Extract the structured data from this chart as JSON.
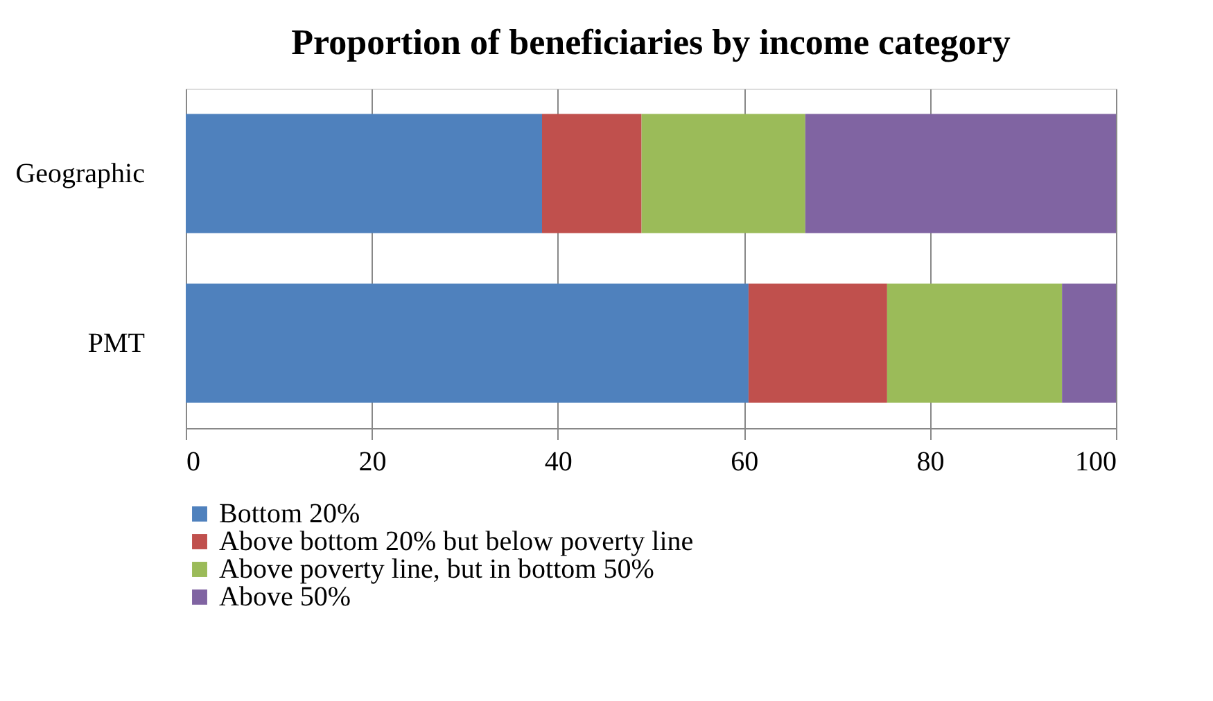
{
  "chart_data": {
    "type": "bar",
    "orientation": "horizontal",
    "stacked": true,
    "title": "Proportion of beneficiaries by income category",
    "categories": [
      "Geographic",
      "PMT"
    ],
    "series": [
      {
        "name": "Bottom 20%",
        "color": "#4f81bd",
        "values": [
          38.3,
          60.5
        ]
      },
      {
        "name": "Above bottom 20% but below poverty line",
        "color": "#c0504d",
        "values": [
          10.7,
          14.9
        ]
      },
      {
        "name": "Above poverty line, but in bottom 50%",
        "color": "#9bbb59",
        "values": [
          17.6,
          18.8
        ]
      },
      {
        "name": "Above 50%",
        "color": "#8064a2",
        "values": [
          33.4,
          5.8
        ]
      }
    ],
    "xlim": [
      0,
      100
    ],
    "xticks": [
      0,
      20,
      40,
      60,
      80,
      100
    ],
    "grid": "x",
    "legend": "bottom"
  }
}
